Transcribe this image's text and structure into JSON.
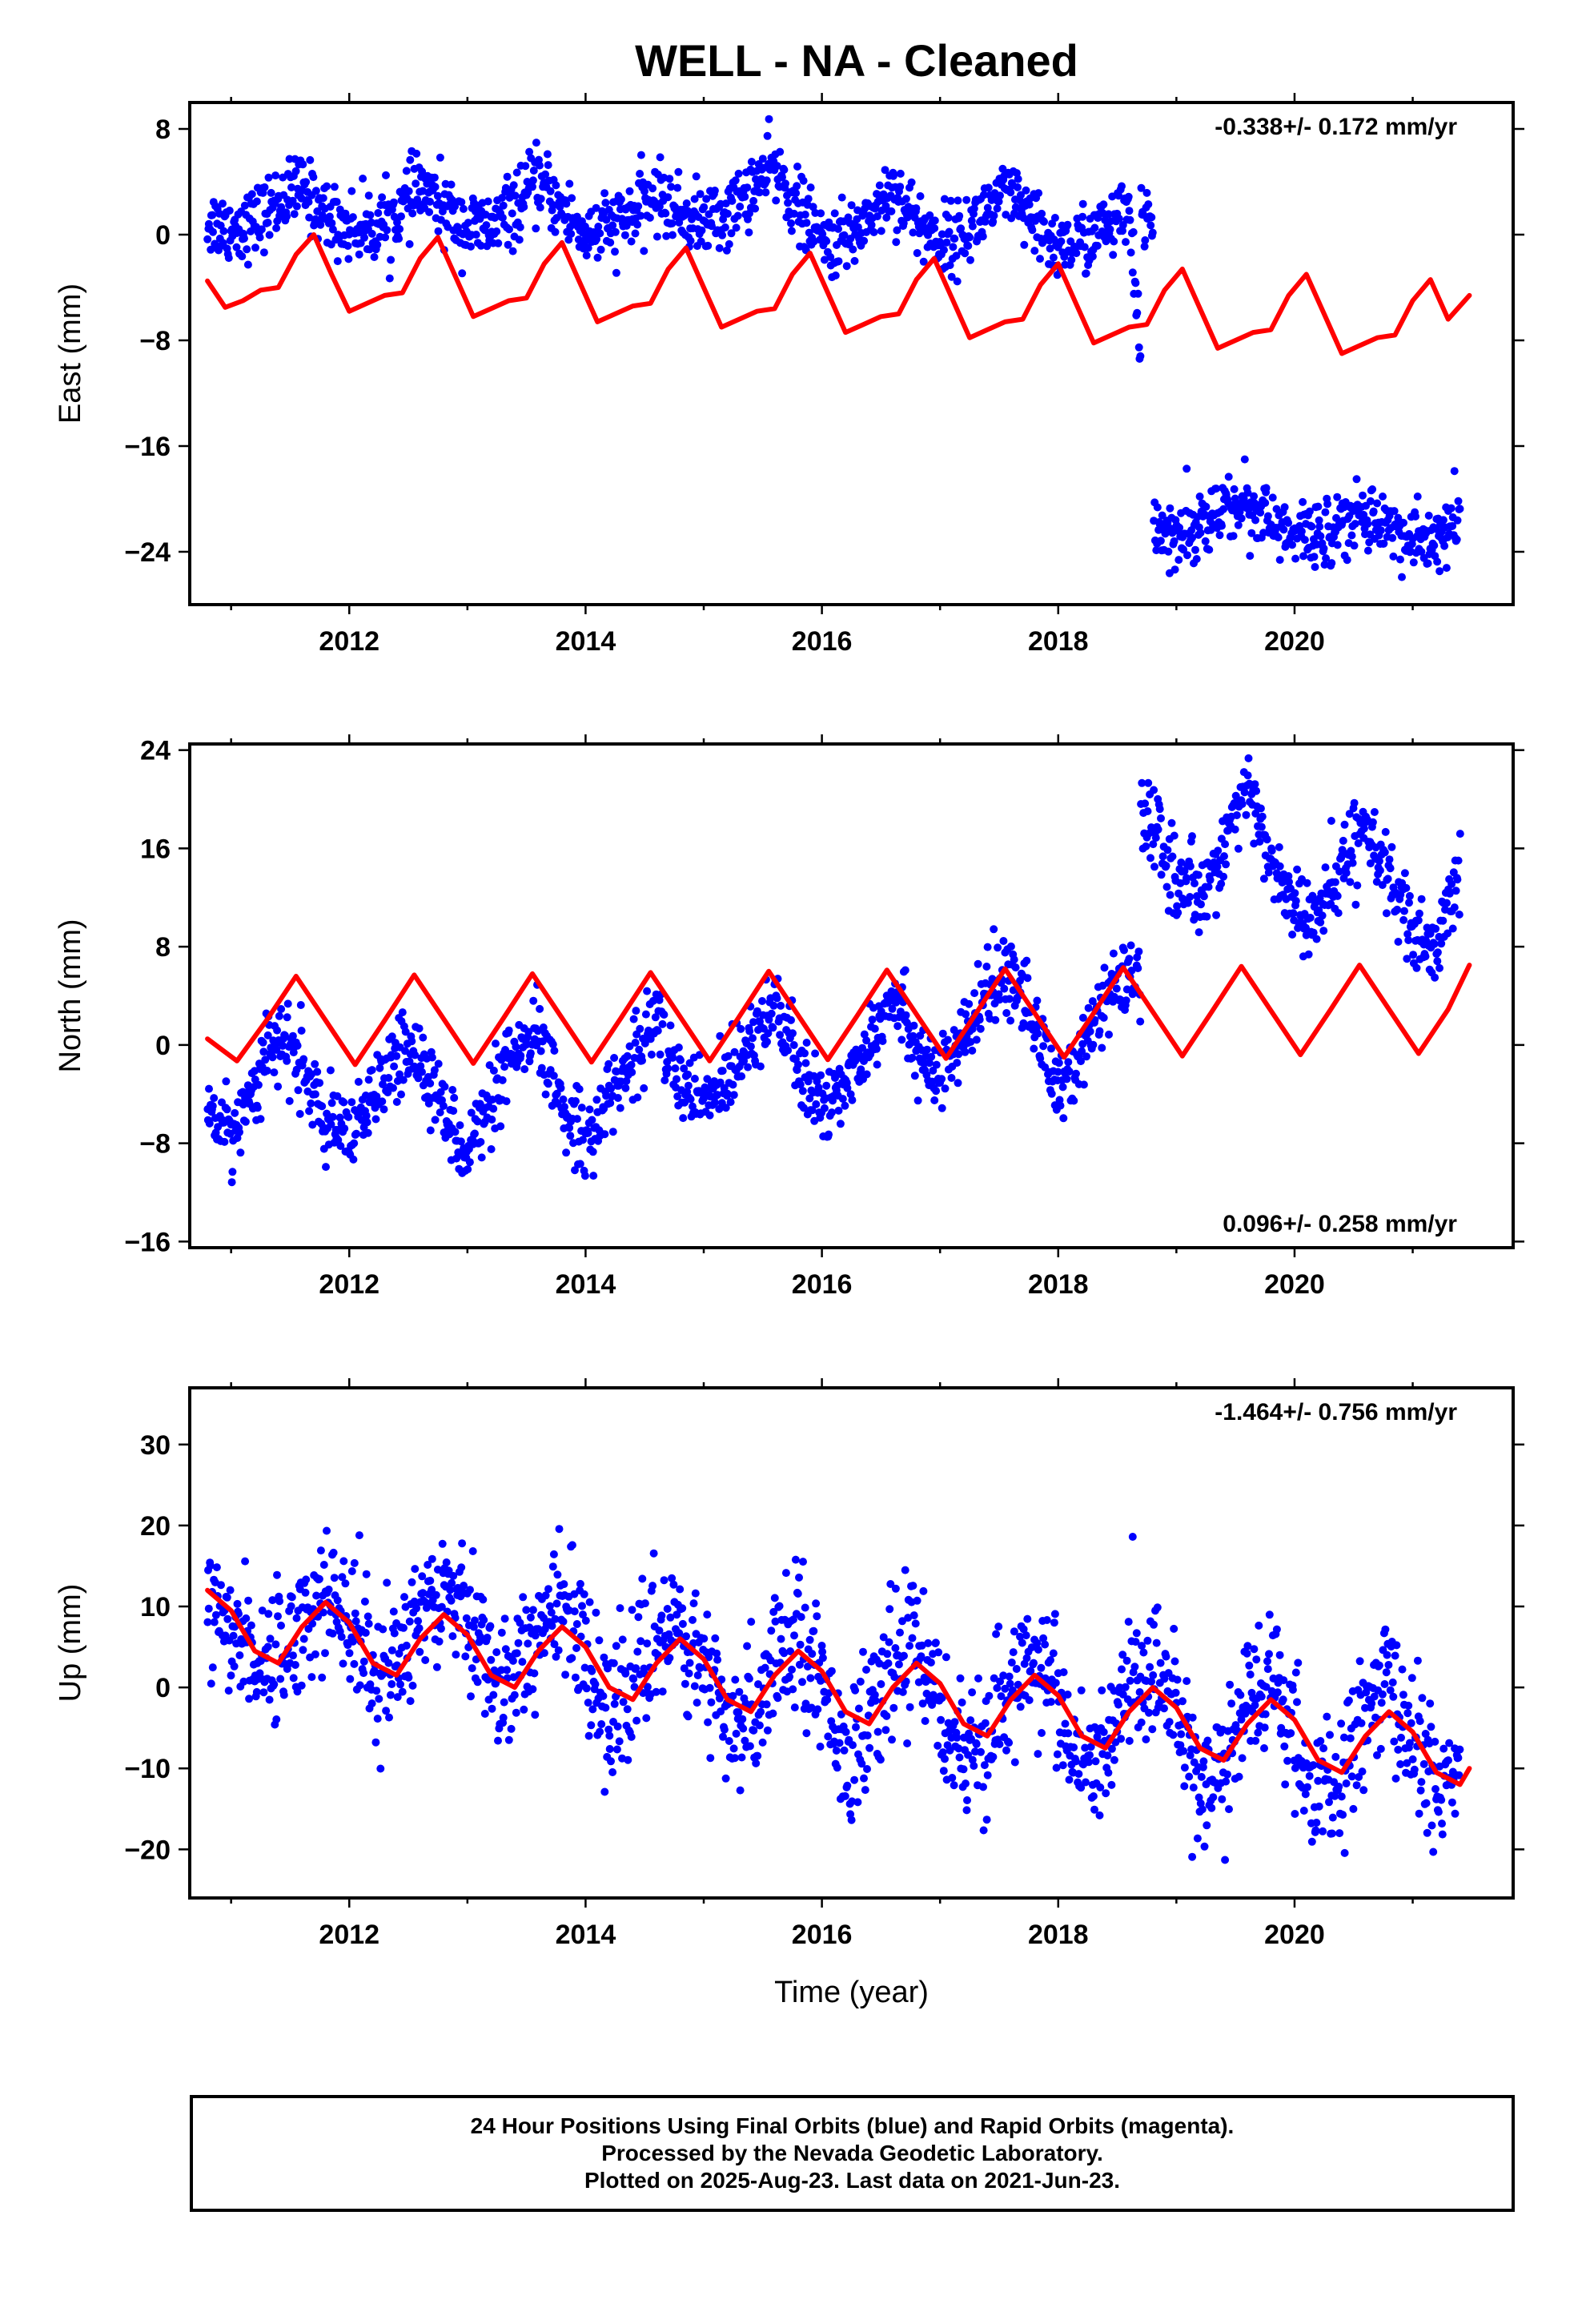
{
  "title": "WELL  - NA - Cleaned",
  "colors": {
    "final_orbits": "#0000ff",
    "model_curve": "#ff0000",
    "frame": "#000000"
  },
  "footer": {
    "line1": "24 Hour Positions Using Final Orbits (blue) and Rapid Orbits (magenta).",
    "line2": "Processed by the Nevada Geodetic Laboratory.",
    "line3": "Plotted on 2025-Aug-23. Last data on 2021-Jun-23."
  },
  "chart_data": [
    {
      "type": "scatter",
      "component": "East",
      "ylabel": "East (mm)",
      "xlabel": "",
      "rate_label": "-0.338+/- 0.172 mm/yr",
      "rate_position": "top-right",
      "xlim": [
        2010.65,
        2021.85
      ],
      "ylim": [
        -28,
        10
      ],
      "xticks": [
        2012,
        2014,
        2016,
        2018,
        2020
      ],
      "yticks": [
        8,
        0,
        -8,
        -16,
        -24
      ],
      "ytick_labels": [
        "8",
        "0",
        "−8",
        "−16",
        "−24"
      ],
      "grid": false,
      "x_range_data": [
        2010.8,
        2021.48
      ],
      "series": [
        {
          "marker": "dot",
          "color": "#0000ff",
          "x": [
            2010.8,
            2011.0,
            2011.2,
            2011.4,
            2011.6,
            2011.8,
            2012.0,
            2012.2,
            2012.4,
            2012.6,
            2012.8,
            2013.0,
            2013.2,
            2013.4,
            2013.6,
            2013.8,
            2014.0,
            2014.2,
            2014.4,
            2014.6,
            2014.8,
            2015.0,
            2015.2,
            2015.4,
            2015.6,
            2015.8,
            2016.0,
            2016.2,
            2016.4,
            2016.6,
            2016.8,
            2017.0,
            2017.2,
            2017.4,
            2017.6,
            2017.8,
            2018.0,
            2018.2,
            2018.4,
            2018.6,
            2018.8,
            2019.0,
            2019.2,
            2019.4,
            2019.6,
            2019.8,
            2020.0,
            2020.2,
            2020.4,
            2020.6,
            2020.8,
            2021.0,
            2021.2,
            2021.4
          ],
          "y": [
            1.0,
            0.5,
            1.0,
            2.5,
            3.5,
            1.5,
            0.5,
            0.5,
            1.5,
            3.5,
            2.0,
            0.5,
            0.5,
            2.0,
            4.0,
            2.0,
            0.0,
            0.5,
            1.5,
            3.0,
            1.5,
            1.0,
            1.5,
            3.5,
            5.0,
            2.0,
            -0.5,
            -0.5,
            1.5,
            3.5,
            1.0,
            -0.5,
            0.0,
            2.0,
            3.0,
            0.5,
            -1.0,
            -0.5,
            0.5,
            1.5,
            -22.0,
            -22.5,
            -22.0,
            -21.0,
            -20.0,
            -22.0,
            -23.0,
            -22.5,
            -22.0,
            -21.0,
            -22.0,
            -23.5,
            -23.0,
            -22.0
          ]
        },
        {
          "marker": "line",
          "color": "#ff0000",
          "x": [
            2010.8,
            2010.95,
            2011.1,
            2011.25,
            2011.4,
            2011.55,
            2011.7,
            2011.85,
            2012.0,
            2012.15,
            2012.3,
            2012.45,
            2012.6,
            2012.75,
            2012.9,
            2013.05,
            2013.2,
            2013.35,
            2013.5,
            2013.65,
            2013.8,
            2013.95,
            2014.1,
            2014.25,
            2014.4,
            2014.55,
            2014.7,
            2014.85,
            2015.0,
            2015.15,
            2015.3,
            2015.45,
            2015.6,
            2015.75,
            2015.9,
            2016.05,
            2016.2,
            2016.35,
            2016.5,
            2016.65,
            2016.8,
            2016.95,
            2017.1,
            2017.25,
            2017.4,
            2017.55,
            2017.7,
            2017.85,
            2018.0,
            2018.15,
            2018.3,
            2018.45,
            2018.6,
            2018.75,
            2018.9,
            2019.05,
            2019.2,
            2019.35,
            2019.5,
            2019.65,
            2019.8,
            2019.95,
            2020.1,
            2020.25,
            2020.4,
            2020.55,
            2020.7,
            2020.85,
            2021.0,
            2021.15,
            2021.3,
            2021.48
          ],
          "y": [
            -3.5,
            -5.5,
            -5.0,
            -4.2,
            -4.0,
            -1.5,
            0.0,
            -3.0,
            -5.8,
            -5.2,
            -4.6,
            -4.4,
            -1.8,
            -0.2,
            -3.2,
            -6.2,
            -5.6,
            -5.0,
            -4.8,
            -2.2,
            -0.6,
            -3.6,
            -6.6,
            -6.0,
            -5.4,
            -5.2,
            -2.6,
            -1.0,
            -4.0,
            -7.0,
            -6.4,
            -5.8,
            -5.6,
            -3.0,
            -1.4,
            -4.4,
            -7.4,
            -6.8,
            -6.2,
            -6.0,
            -3.4,
            -1.8,
            -4.8,
            -7.8,
            -7.2,
            -6.6,
            -6.4,
            -3.8,
            -2.2,
            -5.2,
            -8.2,
            -7.6,
            -7.0,
            -6.8,
            -4.2,
            -2.6,
            -5.6,
            -8.6,
            -8.0,
            -7.4,
            -7.2,
            -4.6,
            -3.0,
            -6.0,
            -9.0,
            -8.4,
            -7.8,
            -7.6,
            -5.0,
            -3.4,
            -6.4,
            -4.6
          ]
        }
      ]
    },
    {
      "type": "scatter",
      "component": "North",
      "ylabel": "North (mm)",
      "xlabel": "",
      "rate_label": "0.096+/- 0.258 mm/yr",
      "rate_position": "bottom-right",
      "xlim": [
        2010.65,
        2021.85
      ],
      "ylim": [
        -16.5,
        24.5
      ],
      "xticks": [
        2012,
        2014,
        2016,
        2018,
        2020
      ],
      "yticks": [
        24,
        16,
        8,
        0,
        -8,
        -16
      ],
      "ytick_labels": [
        "24",
        "16",
        "8",
        "0",
        "−8",
        "−16"
      ],
      "grid": false,
      "series": [
        {
          "marker": "dot",
          "color": "#0000ff",
          "x": [
            2010.8,
            2011.0,
            2011.2,
            2011.4,
            2011.6,
            2011.8,
            2012.0,
            2012.2,
            2012.4,
            2012.6,
            2012.8,
            2013.0,
            2013.2,
            2013.4,
            2013.6,
            2013.8,
            2014.0,
            2014.2,
            2014.4,
            2014.6,
            2014.8,
            2015.0,
            2015.2,
            2015.4,
            2015.6,
            2015.8,
            2016.0,
            2016.2,
            2016.4,
            2016.6,
            2016.8,
            2017.0,
            2017.2,
            2017.4,
            2017.6,
            2017.8,
            2018.0,
            2018.2,
            2018.4,
            2018.6,
            2018.8,
            2019.0,
            2019.2,
            2019.4,
            2019.6,
            2019.8,
            2020.0,
            2020.2,
            2020.4,
            2020.6,
            2020.8,
            2021.0,
            2021.2,
            2021.4
          ],
          "y": [
            -5.0,
            -7.5,
            -3.0,
            0.5,
            -1.5,
            -6.5,
            -8.0,
            -4.5,
            -1.0,
            -0.5,
            -5.5,
            -8.5,
            -5.0,
            -1.0,
            0.5,
            -5.0,
            -7.5,
            -4.5,
            -1.0,
            2.0,
            -3.0,
            -5.0,
            -2.5,
            1.0,
            3.5,
            -2.0,
            -5.5,
            -3.0,
            0.5,
            4.5,
            0.0,
            -3.0,
            0.5,
            4.0,
            6.5,
            1.5,
            -3.5,
            -1.0,
            3.5,
            5.5,
            18.0,
            13.5,
            12.0,
            16.5,
            21.0,
            15.0,
            11.0,
            10.0,
            14.5,
            18.5,
            13.5,
            8.5,
            7.5,
            14.0
          ]
        },
        {
          "marker": "line",
          "color": "#ff0000",
          "x": [
            2010.8,
            2011.05,
            2011.3,
            2011.55,
            2011.8,
            2012.05,
            2012.3,
            2012.55,
            2012.8,
            2013.05,
            2013.3,
            2013.55,
            2013.8,
            2014.05,
            2014.3,
            2014.55,
            2014.8,
            2015.05,
            2015.3,
            2015.55,
            2015.8,
            2016.05,
            2016.3,
            2016.55,
            2016.8,
            2017.05,
            2017.3,
            2017.55,
            2017.8,
            2018.05,
            2018.3,
            2018.55,
            2018.8,
            2019.05,
            2019.3,
            2019.55,
            2019.8,
            2020.05,
            2020.3,
            2020.55,
            2020.8,
            2021.05,
            2021.3,
            2021.48
          ],
          "y": [
            0.5,
            -1.3,
            2.0,
            5.6,
            2.0,
            -1.6,
            2.0,
            5.7,
            2.1,
            -1.5,
            2.1,
            5.8,
            2.2,
            -1.4,
            2.2,
            5.9,
            2.3,
            -1.3,
            2.3,
            6.0,
            2.4,
            -1.2,
            2.4,
            6.1,
            2.5,
            -1.1,
            2.5,
            6.2,
            2.6,
            -1.0,
            2.6,
            6.3,
            2.7,
            -0.9,
            2.7,
            6.4,
            2.8,
            -0.8,
            2.8,
            6.5,
            2.9,
            -0.7,
            2.9,
            6.5
          ]
        }
      ]
    },
    {
      "type": "scatter",
      "component": "Up",
      "ylabel": "Up (mm)",
      "xlabel": "Time (year)",
      "rate_label": "-1.464+/- 0.756 mm/yr",
      "rate_position": "top-right",
      "xlim": [
        2010.65,
        2021.85
      ],
      "ylim": [
        -26,
        37
      ],
      "xticks": [
        2012,
        2014,
        2016,
        2018,
        2020
      ],
      "yticks": [
        30,
        20,
        10,
        0,
        -10,
        -20
      ],
      "ytick_labels": [
        "30",
        "20",
        "10",
        "0",
        "−10",
        "−20"
      ],
      "grid": false,
      "series": [
        {
          "marker": "dot",
          "color": "#0000ff",
          "x": [
            2010.8,
            2011.0,
            2011.2,
            2011.4,
            2011.6,
            2011.8,
            2012.0,
            2012.2,
            2012.4,
            2012.6,
            2012.8,
            2013.0,
            2013.2,
            2013.4,
            2013.6,
            2013.8,
            2014.0,
            2014.2,
            2014.4,
            2014.6,
            2014.8,
            2015.0,
            2015.2,
            2015.4,
            2015.6,
            2015.8,
            2016.0,
            2016.2,
            2016.4,
            2016.6,
            2016.8,
            2017.0,
            2017.2,
            2017.4,
            2017.6,
            2017.8,
            2018.0,
            2018.2,
            2018.4,
            2018.6,
            2018.8,
            2019.0,
            2019.2,
            2019.4,
            2019.6,
            2019.8,
            2020.0,
            2020.2,
            2020.4,
            2020.6,
            2020.8,
            2021.0,
            2021.2,
            2021.4
          ],
          "y": [
            10,
            8,
            4,
            3,
            8,
            12,
            8,
            2,
            3,
            9,
            14,
            10,
            2,
            1,
            7,
            10,
            5,
            -3,
            0,
            6,
            8,
            2,
            -6,
            -4,
            5,
            7,
            1,
            -8,
            -6,
            3,
            6,
            -1,
            -10,
            -8,
            0,
            5,
            -2,
            -11,
            -9,
            0,
            4,
            -4,
            -12,
            -10,
            -2,
            1,
            -6,
            -14,
            -12,
            -3,
            0,
            -6,
            -13,
            -11
          ]
        },
        {
          "marker": "line",
          "color": "#ff0000",
          "x": [
            2010.8,
            2011.0,
            2011.2,
            2011.4,
            2011.6,
            2011.8,
            2012.0,
            2012.2,
            2012.4,
            2012.6,
            2012.8,
            2013.0,
            2013.2,
            2013.4,
            2013.6,
            2013.8,
            2014.0,
            2014.2,
            2014.4,
            2014.6,
            2014.8,
            2015.0,
            2015.2,
            2015.4,
            2015.6,
            2015.8,
            2016.0,
            2016.2,
            2016.4,
            2016.6,
            2016.8,
            2017.0,
            2017.2,
            2017.4,
            2017.6,
            2017.8,
            2018.0,
            2018.2,
            2018.4,
            2018.6,
            2018.8,
            2019.0,
            2019.2,
            2019.4,
            2019.6,
            2019.8,
            2020.0,
            2020.2,
            2020.4,
            2020.6,
            2020.8,
            2021.0,
            2021.2,
            2021.4,
            2021.48
          ],
          "y": [
            12.0,
            9.5,
            4.5,
            3.0,
            7.5,
            10.5,
            8.0,
            3.0,
            1.5,
            6.0,
            9.0,
            6.5,
            1.5,
            0.0,
            4.5,
            7.5,
            5.0,
            0.0,
            -1.5,
            3.0,
            6.0,
            3.5,
            -1.5,
            -3.0,
            1.5,
            4.5,
            2.0,
            -3.0,
            -4.5,
            0.0,
            3.0,
            0.5,
            -4.5,
            -6.0,
            -1.5,
            1.5,
            -1.0,
            -6.0,
            -7.5,
            -3.0,
            0.0,
            -2.5,
            -7.5,
            -9.0,
            -4.5,
            -1.5,
            -4.0,
            -9.0,
            -10.5,
            -6.0,
            -3.0,
            -5.5,
            -10.5,
            -12.0,
            -10.0
          ]
        }
      ]
    }
  ]
}
